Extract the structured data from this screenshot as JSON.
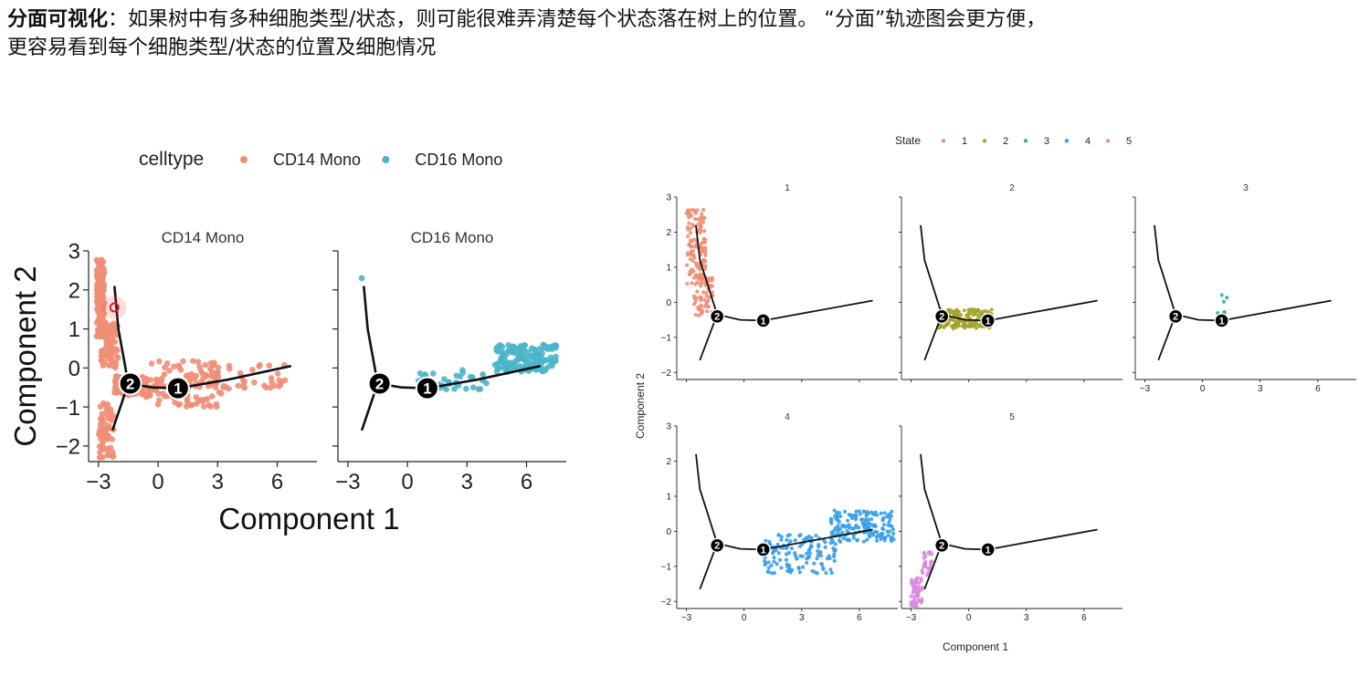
{
  "heading": {
    "bold": "分面可视化",
    "text1": "：如果树中有多种细胞类型/状态，则可能很难弄清楚每个状态落在树上的位置。 “分面”轨迹图会更方便，",
    "text2": "更容易看到每个细胞类型/状态的位置及细胞情况"
  },
  "chart_data": [
    {
      "type": "scatter",
      "facet_by": "celltype",
      "legend": {
        "title": "celltype",
        "position": "top",
        "entries": [
          "CD14 Mono",
          "CD16 Mono"
        ]
      },
      "colors": {
        "CD14 Mono": "#F08E77",
        "CD16 Mono": "#4DB5C9"
      },
      "facets": [
        {
          "label": "CD14 Mono",
          "color": "#F08E77",
          "regions": [
            {
              "n": 130,
              "x": [
                -3.1,
                -2.7
              ],
              "y": [
                0.8,
                2.8
              ]
            },
            {
              "n": 90,
              "x": [
                -2.9,
                -2.0
              ],
              "y": [
                0.0,
                1.2
              ]
            },
            {
              "n": 80,
              "x": [
                -2.2,
                -0.5
              ],
              "y": [
                -0.7,
                -0.2
              ]
            },
            {
              "n": 110,
              "x": [
                -0.6,
                3.2
              ],
              "y": [
                -1.0,
                0.2
              ]
            },
            {
              "n": 40,
              "x": [
                2.5,
                6.4
              ],
              "y": [
                -0.6,
                0.1
              ]
            },
            {
              "n": 60,
              "x": [
                -3.0,
                -2.2
              ],
              "y": [
                -2.3,
                -0.9
              ]
            }
          ]
        },
        {
          "label": "CD16 Mono",
          "color": "#4DB5C9",
          "regions": [
            {
              "n": 1,
              "x": [
                -2.3,
                -2.3
              ],
              "y": [
                2.3,
                2.3
              ]
            },
            {
              "n": 40,
              "x": [
                0.5,
                4.0
              ],
              "y": [
                -0.55,
                -0.05
              ]
            },
            {
              "n": 140,
              "x": [
                4.4,
                7.5
              ],
              "y": [
                -0.1,
                0.6
              ]
            }
          ]
        }
      ],
      "trajectory": {
        "upper": [
          [
            -2.2,
            2.1
          ],
          [
            -2.0,
            1.0
          ],
          [
            -1.5,
            -0.4
          ]
        ],
        "lower": [
          [
            -1.5,
            -0.4
          ],
          [
            -2.3,
            -1.6
          ]
        ],
        "main": [
          [
            -1.5,
            -0.4
          ],
          [
            -0.3,
            -0.5
          ],
          [
            1.0,
            -0.52
          ],
          [
            3.5,
            -0.3
          ],
          [
            6.7,
            0.05
          ]
        ],
        "nodes": [
          {
            "label": "2",
            "x": -1.4,
            "y": -0.4
          },
          {
            "label": "1",
            "x": 1.0,
            "y": -0.52
          }
        ]
      },
      "xlabel": "Component 1",
      "ylabel": "Component 2",
      "xticks": [
        "-3",
        "0",
        "3",
        "6"
      ],
      "yticks": [
        "3",
        "2",
        "1",
        "0",
        "-1",
        "-2"
      ],
      "xlim": [
        -3.5,
        8.0
      ],
      "ylim": [
        -2.4,
        3.0
      ]
    },
    {
      "type": "scatter",
      "facet_by": "State",
      "legend": {
        "title": "State",
        "position": "top",
        "entries": [
          "1",
          "2",
          "3",
          "4",
          "5"
        ]
      },
      "colors": {
        "1": "#F08E77",
        "2": "#A3A329",
        "3": "#33B28C",
        "4": "#3A9EE8",
        "5": "#D989E0"
      },
      "facets": [
        {
          "label": "1",
          "color": "#F08E77",
          "regions": [
            {
              "n": 130,
              "x": [
                -3.0,
                -2.0
              ],
              "y": [
                0.5,
                2.7
              ]
            },
            {
              "n": 60,
              "x": [
                -2.6,
                -1.6
              ],
              "y": [
                -0.4,
                0.7
              ]
            }
          ]
        },
        {
          "label": "2",
          "color": "#A3A329",
          "regions": [
            {
              "n": 170,
              "x": [
                -1.6,
                1.2
              ],
              "y": [
                -0.75,
                -0.2
              ]
            }
          ]
        },
        {
          "label": "3",
          "color": "#33B28C",
          "regions": [
            {
              "n": 8,
              "x": [
                0.7,
                1.3
              ],
              "y": [
                -0.5,
                -0.25
              ]
            },
            {
              "n": 3,
              "x": [
                1.0,
                1.4
              ],
              "y": [
                0.0,
                0.3
              ]
            }
          ]
        },
        {
          "label": "4",
          "color": "#3A9EE8",
          "regions": [
            {
              "n": 130,
              "x": [
                1.0,
                4.8
              ],
              "y": [
                -1.2,
                -0.1
              ]
            },
            {
              "n": 170,
              "x": [
                4.5,
                7.8
              ],
              "y": [
                -0.3,
                0.6
              ]
            }
          ]
        },
        {
          "label": "5",
          "color": "#D989E0",
          "regions": [
            {
              "n": 60,
              "x": [
                -3.0,
                -2.4
              ],
              "y": [
                -2.2,
                -1.3
              ]
            },
            {
              "n": 25,
              "x": [
                -2.5,
                -1.9
              ],
              "y": [
                -1.3,
                -0.5
              ]
            }
          ]
        }
      ],
      "trajectory": {
        "upper": [
          [
            -2.5,
            2.2
          ],
          [
            -2.3,
            1.2
          ],
          [
            -1.4,
            -0.35
          ]
        ],
        "lower": [
          [
            -1.4,
            -0.35
          ],
          [
            -2.3,
            -1.65
          ]
        ],
        "main": [
          [
            -1.4,
            -0.35
          ],
          [
            -0.2,
            -0.5
          ],
          [
            1.0,
            -0.52
          ],
          [
            3.2,
            -0.3
          ],
          [
            6.7,
            0.05
          ]
        ],
        "nodes": [
          {
            "label": "2",
            "x": -1.4,
            "y": -0.4
          },
          {
            "label": "1",
            "x": 1.0,
            "y": -0.52
          }
        ]
      },
      "xlabel": "Component 1",
      "ylabel": "Component 2",
      "xticks": [
        "-3",
        "0",
        "3",
        "6"
      ],
      "yticks": [
        "3",
        "2",
        "1",
        "0",
        "-1",
        "-2"
      ],
      "xlim": [
        -3.5,
        8.0
      ],
      "ylim": [
        -2.2,
        3.0
      ]
    }
  ]
}
